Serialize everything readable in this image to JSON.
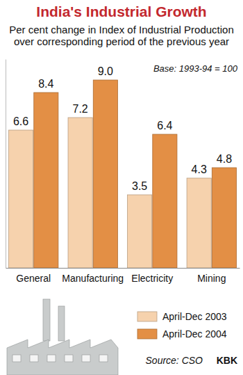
{
  "chart_data": {
    "type": "bar",
    "title": "India's Industrial Growth",
    "subtitle": "Per cent change in Index of Industrial Production over corresponding period of the previous year",
    "annotations": [
      "Base: 1993-94 = 100",
      "Source: CSO",
      "KBK"
    ],
    "categories": [
      "General",
      "Manufacturing",
      "Electricity",
      "Mining"
    ],
    "series": [
      {
        "name": "April-Dec 2003",
        "color": "#f6d2ad",
        "values": [
          6.6,
          7.2,
          3.5,
          4.3
        ],
        "value_labels": [
          "6.6",
          "7.2",
          "3.5",
          "4.3"
        ]
      },
      {
        "name": "April-Dec 2004",
        "color": "#e38f45",
        "values": [
          8.4,
          9.0,
          6.4,
          4.8
        ],
        "value_labels": [
          "8.4",
          "9.0",
          "6.4",
          "4.8"
        ]
      }
    ],
    "ylim": [
      0,
      10
    ],
    "data_labels": true,
    "tick_labels": "x",
    "legend": "lower right"
  }
}
